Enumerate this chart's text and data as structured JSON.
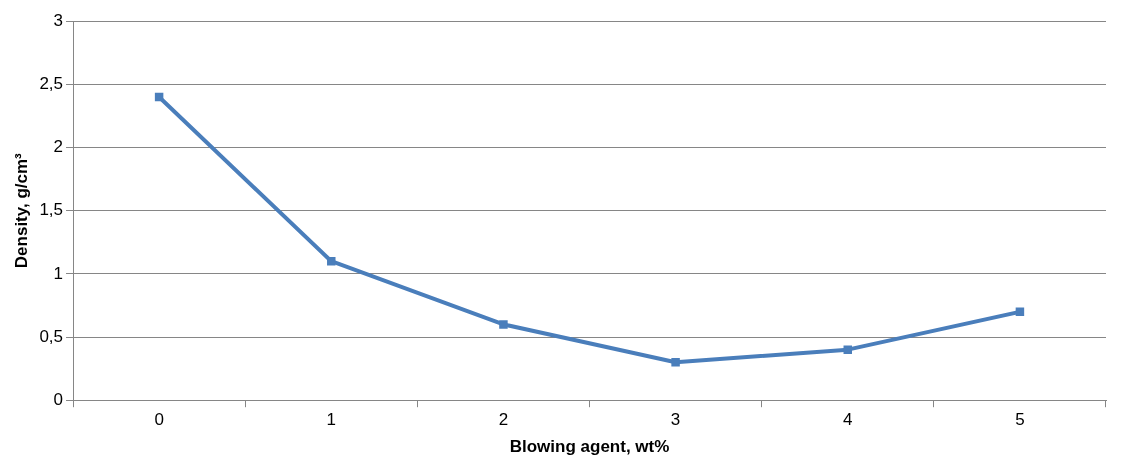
{
  "chart_data": {
    "type": "line",
    "xlabel": "Blowing agent, wt%",
    "ylabel": "Density, g/cm³",
    "categories": [
      "0",
      "1",
      "2",
      "3",
      "4",
      "5"
    ],
    "series": [
      {
        "color": "#4a7ebb",
        "values": [
          2.4,
          1.1,
          0.6,
          0.3,
          0.4,
          0.7
        ]
      }
    ],
    "ylim": [
      0,
      3
    ],
    "yticks": [
      0,
      {
        "value": 0.5,
        "label": "0,5"
      },
      1,
      {
        "value": 1.5,
        "label": "1,5"
      },
      2,
      {
        "value": 2.5,
        "label": "2,5"
      },
      3
    ],
    "grid": "y",
    "legend": false,
    "marker": "square",
    "line_style": "solid"
  }
}
